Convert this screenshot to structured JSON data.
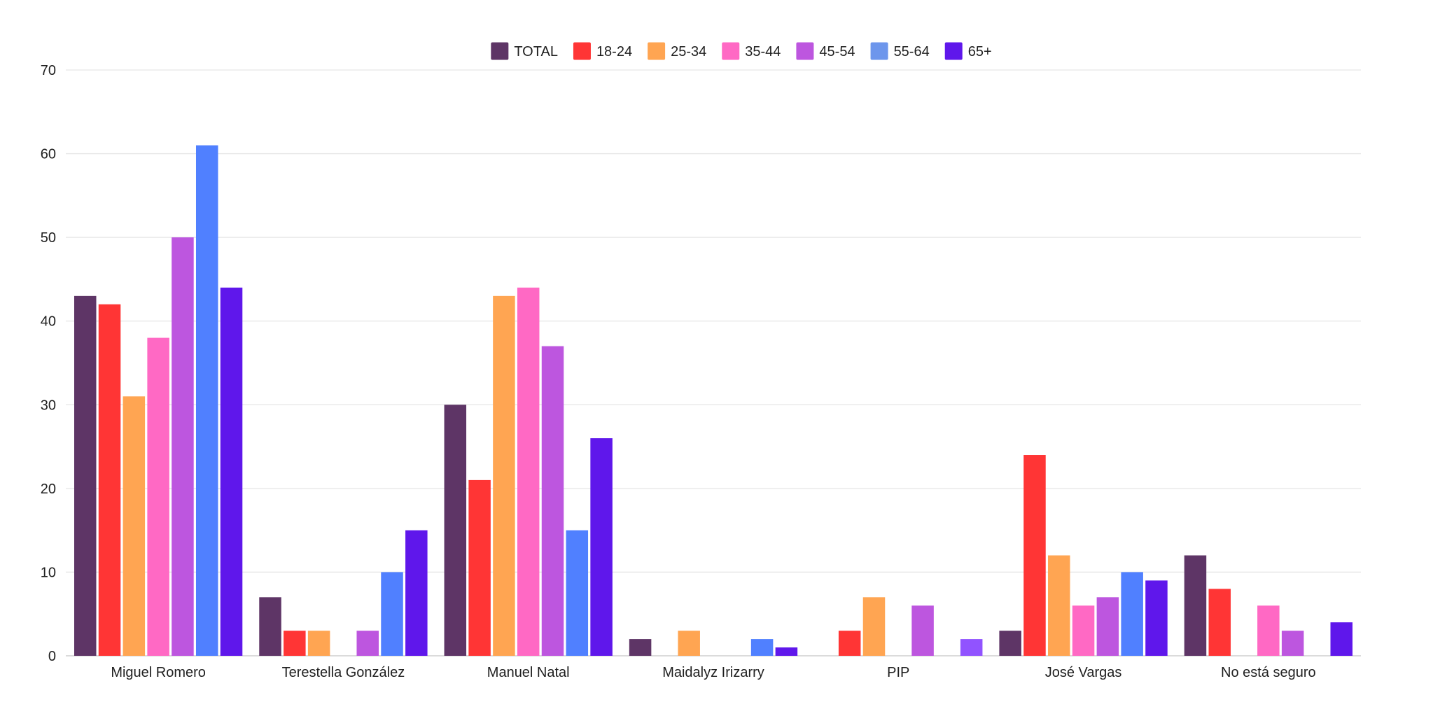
{
  "chart_data": {
    "type": "bar",
    "title": "",
    "xlabel": "",
    "ylabel": "",
    "ylim": [
      0,
      70
    ],
    "yticks": [
      0,
      10,
      20,
      30,
      40,
      50,
      60,
      70
    ],
    "grid": true,
    "legend_position": "top-center",
    "categories": [
      "Miguel Romero",
      "Terestella González",
      "Manuel Natal",
      "Maidalyz Irizarry",
      "PIP",
      "José Vargas",
      "No está seguro"
    ],
    "series": [
      {
        "name": "TOTAL",
        "color": "#5e3566",
        "values": [
          43,
          7,
          30,
          2,
          0,
          3,
          12
        ]
      },
      {
        "name": "18-24",
        "color": "#ff3535",
        "values": [
          42,
          3,
          21,
          0,
          3,
          24,
          8
        ]
      },
      {
        "name": "25-34",
        "color": "#ffa552",
        "values": [
          31,
          3,
          43,
          3,
          7,
          12,
          0
        ]
      },
      {
        "name": "35-44",
        "color": "#ff69c4",
        "values": [
          38,
          0,
          44,
          0,
          0,
          6,
          6
        ]
      },
      {
        "name": "45-54",
        "color": "#bd56df",
        "values": [
          50,
          3,
          37,
          0,
          6,
          7,
          3
        ]
      },
      {
        "name": "55-64",
        "color": "#5080ff",
        "values": [
          61,
          10,
          15,
          2,
          0,
          10,
          0
        ]
      },
      {
        "name": "65+",
        "color": "#5f17eb",
        "values": [
          44,
          15,
          26,
          1,
          2,
          9,
          4
        ]
      }
    ],
    "point_colors": [
      {
        "series": "65+",
        "category": "PIP",
        "color": "#9153ff"
      }
    ],
    "legend_colors": {
      "55-64": "#6d96ec"
    }
  }
}
